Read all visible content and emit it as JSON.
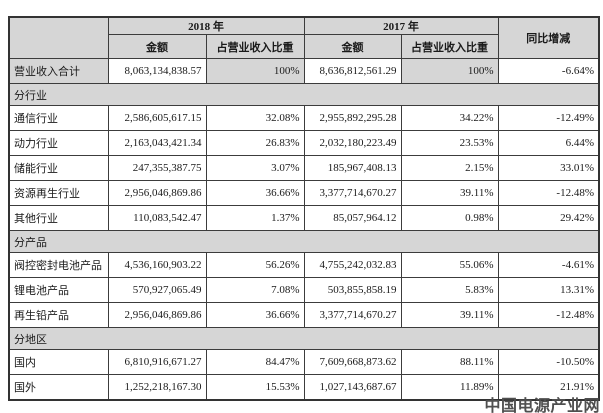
{
  "theme": {
    "shade_color": "#d6d6d6",
    "border_color": "#3c3c3c",
    "watermark_color": "#4f4f4f"
  },
  "watermark": "中国电源产业网",
  "table": {
    "header": {
      "year_2018": "2018 年",
      "year_2017": "2017 年",
      "yoy": "同比增减",
      "amount_2018": "金额",
      "pct_2018": "占营业收入比重",
      "amount_2017": "金额",
      "pct_2017": "占营业收入比重"
    },
    "rows": [
      {
        "type": "data",
        "label": "营业收入合计",
        "a18": "8,063,134,838.57",
        "p18": "100%",
        "a17": "8,636,812,561.29",
        "p17": "100%",
        "yoy": "-6.64%",
        "shade": [
          "label",
          "p18",
          "p17"
        ]
      },
      {
        "type": "section",
        "label": "分行业"
      },
      {
        "type": "data",
        "label": "通信行业",
        "a18": "2,586,605,617.15",
        "p18": "32.08%",
        "a17": "2,955,892,295.28",
        "p17": "34.22%",
        "yoy": "-12.49%"
      },
      {
        "type": "data",
        "label": "动力行业",
        "a18": "2,163,043,421.34",
        "p18": "26.83%",
        "a17": "2,032,180,223.49",
        "p17": "23.53%",
        "yoy": "6.44%"
      },
      {
        "type": "data",
        "label": "储能行业",
        "a18": "247,355,387.75",
        "p18": "3.07%",
        "a17": "185,967,408.13",
        "p17": "2.15%",
        "yoy": "33.01%"
      },
      {
        "type": "data",
        "label": "资源再生行业",
        "a18": "2,956,046,869.86",
        "p18": "36.66%",
        "a17": "3,377,714,670.27",
        "p17": "39.11%",
        "yoy": "-12.48%"
      },
      {
        "type": "data",
        "label": "其他行业",
        "a18": "110,083,542.47",
        "p18": "1.37%",
        "a17": "85,057,964.12",
        "p17": "0.98%",
        "yoy": "29.42%"
      },
      {
        "type": "section",
        "label": "分产品"
      },
      {
        "type": "data",
        "label": "阀控密封电池产品",
        "a18": "4,536,160,903.22",
        "p18": "56.26%",
        "a17": "4,755,242,032.83",
        "p17": "55.06%",
        "yoy": "-4.61%"
      },
      {
        "type": "data",
        "label": "锂电池产品",
        "a18": "570,927,065.49",
        "p18": "7.08%",
        "a17": "503,855,858.19",
        "p17": "5.83%",
        "yoy": "13.31%"
      },
      {
        "type": "data",
        "label": "再生铅产品",
        "a18": "2,956,046,869.86",
        "p18": "36.66%",
        "a17": "3,377,714,670.27",
        "p17": "39.11%",
        "yoy": "-12.48%"
      },
      {
        "type": "section",
        "label": "分地区"
      },
      {
        "type": "data",
        "label": "国内",
        "a18": "6,810,916,671.27",
        "p18": "84.47%",
        "a17": "7,609,668,873.62",
        "p17": "88.11%",
        "yoy": "-10.50%"
      },
      {
        "type": "data",
        "label": "国外",
        "a18": "1,252,218,167.30",
        "p18": "15.53%",
        "a17": "1,027,143,687.67",
        "p17": "11.89%",
        "yoy": "21.91%"
      }
    ]
  }
}
